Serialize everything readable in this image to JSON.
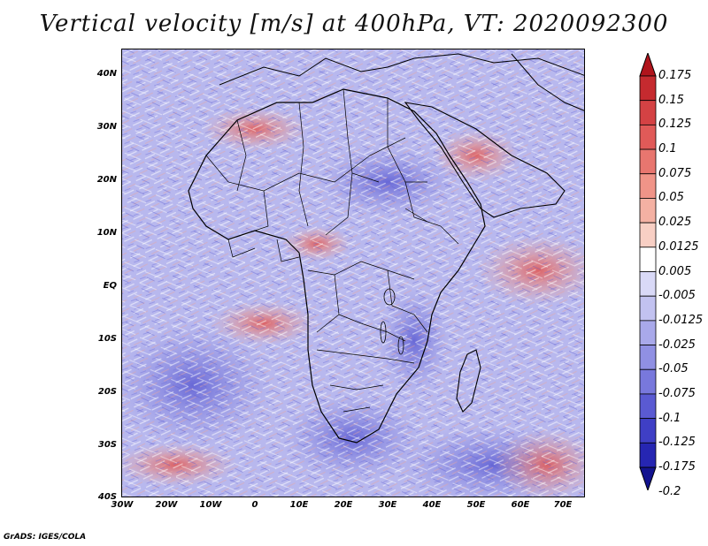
{
  "title": "Vertical velocity [m/s] at 400hPa, VT: 2020092300",
  "footer": "GrADS: IGES/COLA",
  "map": {
    "lat_labels": [
      "40N",
      "30N",
      "20N",
      "10N",
      "EQ",
      "10S",
      "20S",
      "30S",
      "40S"
    ],
    "lon_labels": [
      "30W",
      "20W",
      "10W",
      "0",
      "10E",
      "20E",
      "30E",
      "40E",
      "50E",
      "60E",
      "70E"
    ],
    "lat_range": [
      -40,
      45
    ],
    "lon_range": [
      -30,
      75
    ]
  },
  "colorbar": {
    "labels": [
      "0.175",
      "0.15",
      "0.125",
      "0.1",
      "0.075",
      "0.05",
      "0.025",
      "0.0125",
      "0.005",
      "-0.005",
      "-0.0125",
      "-0.025",
      "-0.05",
      "-0.075",
      "-0.1",
      "-0.125",
      "-0.175",
      "-0.2"
    ],
    "colors": [
      "#b0141c",
      "#c52a2f",
      "#d44244",
      "#e05a58",
      "#e8766f",
      "#f09488",
      "#f4b1a3",
      "#f8cfc4",
      "#ffffff",
      "#d9d9f7",
      "#c2c2f0",
      "#a9a9ea",
      "#9090e3",
      "#7878dc",
      "#5a5ad2",
      "#3f3fc5",
      "#2626b2",
      "#13138f"
    ]
  }
}
